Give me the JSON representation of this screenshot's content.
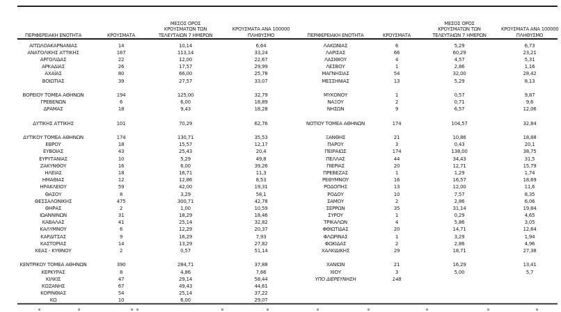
{
  "headers": {
    "region": "ΠΕΡΙΦΕΡΕΙΑΚΗ ΕΝΟΤΗΤΑ",
    "cases": "ΚΡΟΥΣΜΑΤΑ",
    "avg7_line1": "ΜΕΣΟΣ ΟΡΟΣ",
    "avg7_line2": "ΚΡΟΥΣΜΑΤΩΝ ΤΩΝ",
    "avg7_line3": "ΤΕΛΕΥΤΑΙΩΝ 7 ΗΜΕΡΩΝ",
    "per100k_line1": "ΚΡΟΥΣΜΑΤΑ ΑΝΑ 100000",
    "per100k_line2": "ΠΛΗΘΥΣΜΟ"
  },
  "left_table": {
    "rows": [
      {
        "name": "ΑΙΤΩΛΟΑΚΑΡΝΑΝΙΑΣ",
        "cases": "14",
        "avg7": "10,14",
        "per100k": "6,64"
      },
      {
        "name": "ΑΝΑΤΟΛΙΚΗΣ ΑΤΤΙΚΗΣ",
        "cases": "167",
        "avg7": "113,14",
        "per100k": "33,24"
      },
      {
        "name": "ΑΡΓΟΛΙΔΑΣ",
        "cases": "22",
        "avg7": "12,00",
        "per100k": "22,67"
      },
      {
        "name": "ΑΡΚΑΔΙΑΣ",
        "cases": "26",
        "avg7": "17,57",
        "per100k": "29,99"
      },
      {
        "name": "ΑΧΑΪΑΣ",
        "cases": "80",
        "avg7": "66,00",
        "per100k": "25,78"
      },
      {
        "name": "ΒΟΙΩΤΙΑΣ",
        "cases": "39",
        "avg7": "27,57",
        "per100k": "33,07"
      },
      {
        "blank": true
      },
      {
        "name": "ΒΟΡΕΙΟΥ ΤΟΜΕΑ ΑΘΗΝΩΝ",
        "cases": "194",
        "avg7": "125,00",
        "per100k": "32,79"
      },
      {
        "name": "ΓΡΕΒΕΝΩΝ",
        "cases": "6",
        "avg7": "6,00",
        "per100k": "18,89"
      },
      {
        "name": "ΔΡΑΜΑΣ",
        "cases": "18",
        "avg7": "9,43",
        "per100k": "18,28"
      },
      {
        "blank": true
      },
      {
        "name": "ΔΥΤΙΚΗΣ ΑΤΤΙΚΗΣ",
        "cases": "101",
        "avg7": "70,29",
        "per100k": "62,76"
      },
      {
        "blank": true
      },
      {
        "name": "ΔΥΤΙΚΟΥ ΤΟΜΕΑ ΑΘΗΝΩΝ",
        "cases": "174",
        "avg7": "130,71",
        "per100k": "35,53"
      },
      {
        "name": "ΕΒΡΟΥ",
        "cases": "18",
        "avg7": "15,57",
        "per100k": "12,17"
      },
      {
        "name": "ΕΥΒΟΙΑΣ",
        "cases": "43",
        "avg7": "25,43",
        "per100k": "20,4"
      },
      {
        "name": "ΕΥΡΥΤΑΝΙΑΣ",
        "cases": "10",
        "avg7": "5,29",
        "per100k": "49,8"
      },
      {
        "name": "ΖΑΚΥΝΘΟΥ",
        "cases": "16",
        "avg7": "6,00",
        "per100k": "39,26"
      },
      {
        "name": "ΗΛΕΙΑΣ",
        "cases": "18",
        "avg7": "16,71",
        "per100k": "11,3"
      },
      {
        "name": "ΗΜΑΘΙΑΣ",
        "cases": "12",
        "avg7": "12,86",
        "per100k": "8,53"
      },
      {
        "name": "ΗΡΑΚΛΕΙΟΥ",
        "cases": "59",
        "avg7": "42,00",
        "per100k": "19,31"
      },
      {
        "name": "ΘΑΣΟΥ",
        "cases": "8",
        "avg7": "3,29",
        "per100k": "58,1"
      },
      {
        "name": "ΘΕΣΣΑΛΟΝΙΚΗΣ",
        "cases": "475",
        "avg7": "300,71",
        "per100k": "42,78"
      },
      {
        "name": "ΘΗΡΑΣ",
        "cases": "2",
        "avg7": "1,00",
        "per100k": "10,59"
      },
      {
        "name": "ΙΩΑΝΝΙΝΩΝ",
        "cases": "31",
        "avg7": "18,29",
        "per100k": "18,46"
      },
      {
        "name": "ΚΑΒΑΛΑΣ",
        "cases": "41",
        "avg7": "25,14",
        "per100k": "32,82"
      },
      {
        "name": "ΚΑΛΥΜΝΟΥ",
        "cases": "6",
        "avg7": "12,29",
        "per100k": "20,37"
      },
      {
        "name": "ΚΑΡΔΙΤΣΑΣ",
        "cases": "9",
        "avg7": "16,29",
        "per100k": "7,93"
      },
      {
        "name": "ΚΑΣΤΟΡΙΑΣ",
        "cases": "14",
        "avg7": "13,29",
        "per100k": "27,82"
      },
      {
        "name": "ΚΕΑΣ - ΚΥΘΝΟΥ",
        "cases": "2",
        "avg7": "0,57",
        "per100k": "51,14"
      },
      {
        "blank": true
      },
      {
        "name": "ΚΕΝΤΡΙΚΟΥ ΤΟΜΕΑ ΑΘΗΝΩΝ",
        "cases": "390",
        "avg7": "284,71",
        "per100k": "37,88"
      },
      {
        "name": "ΚΕΡΚΥΡΑΣ",
        "cases": "8",
        "avg7": "4,86",
        "per100k": "7,66"
      },
      {
        "name": "ΚΙΛΚΙΣ",
        "cases": "47",
        "avg7": "29,14",
        "per100k": "58,44"
      },
      {
        "name": "ΚΟΖΑΝΗΣ",
        "cases": "67",
        "avg7": "49,43",
        "per100k": "44,61"
      },
      {
        "name": "ΚΟΡΙΝΘΙΑΣ",
        "cases": "54",
        "avg7": "25,14",
        "per100k": "37,22"
      },
      {
        "name": "ΚΩ",
        "cases": "10",
        "avg7": "6,00",
        "per100k": "29,07"
      }
    ]
  },
  "right_table": {
    "rows": [
      {
        "name": "ΛΑΚΩΝΙΑΣ",
        "cases": "6",
        "avg7": "5,29",
        "per100k": "6,73"
      },
      {
        "name": "ΛΑΡΙΣΑΣ",
        "cases": "66",
        "avg7": "60,29",
        "per100k": "23,21"
      },
      {
        "name": "ΛΑΣΙΘΙΟΥ",
        "cases": "4",
        "avg7": "4,57",
        "per100k": "5,31"
      },
      {
        "name": "ΛΕΣΒΟΥ",
        "cases": "1",
        "avg7": "2,86",
        "per100k": "1,16"
      },
      {
        "name": "ΜΑΓΝΗΣΙΑΣ",
        "cases": "54",
        "avg7": "32,00",
        "per100k": "28,42"
      },
      {
        "name": "ΜΕΣΣΗΝΙΑΣ",
        "cases": "13",
        "avg7": "5,29",
        "per100k": "8,13"
      },
      {
        "blank": true
      },
      {
        "name": "ΜΥΚΟΝΟΥ",
        "cases": "1",
        "avg7": "0,57",
        "per100k": "9,87"
      },
      {
        "name": "ΝΑΞΟΥ",
        "cases": "2",
        "avg7": "0,71",
        "per100k": "9,6"
      },
      {
        "name": "ΝΗΣΩΝ",
        "cases": "9",
        "avg7": "6,57",
        "per100k": "12,06"
      },
      {
        "blank": true
      },
      {
        "name": "ΝΟΤΙΟΥ ΤΟΜΕΑ ΑΘΗΝΩΝ",
        "cases": "174",
        "avg7": "104,57",
        "per100k": "32,84"
      },
      {
        "blank": true
      },
      {
        "name": "ΞΑΝΘΗΣ",
        "cases": "21",
        "avg7": "10,86",
        "per100k": "18,88"
      },
      {
        "name": "ΠΑΡΟΥ",
        "cases": "3",
        "avg7": "0,43",
        "per100k": "20,1"
      },
      {
        "name": "ΠΕΙΡΑΙΩΣ",
        "cases": "174",
        "avg7": "138,00",
        "per100k": "38,75"
      },
      {
        "name": "ΠΕΛΛΑΣ",
        "cases": "44",
        "avg7": "34,43",
        "per100k": "31,5"
      },
      {
        "name": "ΠΙΕΡΙΑΣ",
        "cases": "20",
        "avg7": "12,71",
        "per100k": "15,79"
      },
      {
        "name": "ΠΡΕΒΕΖΑΣ",
        "cases": "1",
        "avg7": "1,29",
        "per100k": "1,74"
      },
      {
        "name": "ΡΕΘΥΜΝΟΥ",
        "cases": "16",
        "avg7": "16,57",
        "per100k": "18,69"
      },
      {
        "name": "ΡΟΔΟΠΗΣ",
        "cases": "13",
        "avg7": "12,00",
        "per100k": "11,6"
      },
      {
        "name": "ΡΟΔΟΥ",
        "cases": "10",
        "avg7": "7,57",
        "per100k": "8,35"
      },
      {
        "name": "ΣΑΜΟΥ",
        "cases": "2",
        "avg7": "2,86",
        "per100k": "6,06"
      },
      {
        "name": "ΣΕΡΡΩΝ",
        "cases": "35",
        "avg7": "31,14",
        "per100k": "19,84"
      },
      {
        "name": "ΣΥΡΟΥ",
        "cases": "1",
        "avg7": "0,29",
        "per100k": "4,65"
      },
      {
        "name": "ΤΡΙΚΑΛΩΝ",
        "cases": "4",
        "avg7": "5,86",
        "per100k": "3,05"
      },
      {
        "name": "ΦΘΙΩΤΙΔΑΣ",
        "cases": "20",
        "avg7": "14,71",
        "per100k": "12,64"
      },
      {
        "name": "ΦΛΩΡΙΝΑΣ",
        "cases": "1",
        "avg7": "3,29",
        "per100k": "1,94"
      },
      {
        "name": "ΦΩΚΙΔΑΣ",
        "cases": "2",
        "avg7": "2,86",
        "per100k": "4,96"
      },
      {
        "name": "ΧΑΛΚΙΔΙΚΗΣ",
        "cases": "29",
        "avg7": "18,71",
        "per100k": "27,38"
      },
      {
        "blank": true
      },
      {
        "name": "ΧΑΝΙΩΝ",
        "cases": "21",
        "avg7": "16,29",
        "per100k": "13,41"
      },
      {
        "name": "ΧΙΟΥ",
        "cases": "3",
        "avg7": "5,00",
        "per100k": "5,7"
      },
      {
        "name": "ΥΠΟ ΔΙΕΡΕΥΝΗΣΗ",
        "cases": "148",
        "avg7": "",
        "per100k": "",
        "italic": true
      },
      {
        "blank": true
      },
      {
        "blank": true
      },
      {
        "blank": true
      }
    ]
  }
}
